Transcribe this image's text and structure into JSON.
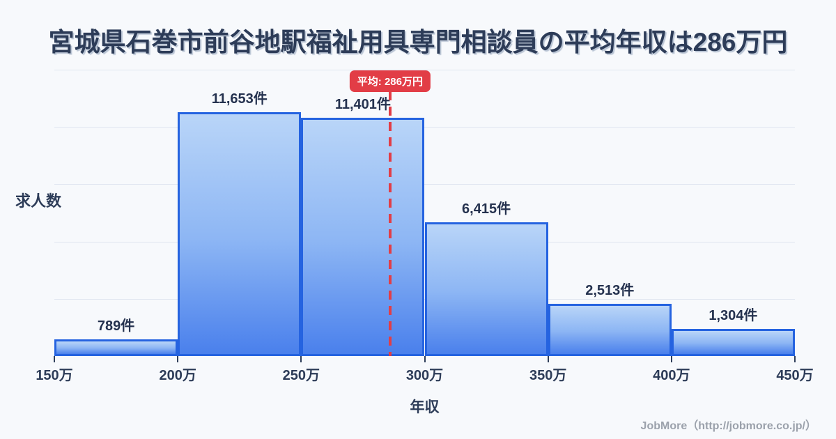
{
  "title": "宮城県石巻市前谷地駅福祉用具専門相談員の平均年収は286万円",
  "chart_data": {
    "type": "bar",
    "subtype": "histogram",
    "title": "宮城県石巻市前谷地駅福祉用具専門相談員の平均年収は286万円",
    "xlabel": "年収",
    "ylabel": "求人数",
    "bin_edges": [
      150,
      200,
      250,
      300,
      350,
      400,
      450
    ],
    "bin_edge_labels": [
      "150万",
      "200万",
      "250万",
      "300万",
      "350万",
      "400万",
      "450万"
    ],
    "values": [
      789,
      11653,
      11401,
      6415,
      2513,
      1304
    ],
    "bar_labels": [
      "789件",
      "11,653件",
      "11,401件",
      "6,415件",
      "2,513件",
      "1,304件"
    ],
    "xlim": [
      150,
      450
    ],
    "ylim": [
      0,
      13700
    ],
    "grid": true,
    "grid_divisions": 5,
    "average": {
      "value": 286,
      "label": "平均: 286万円"
    }
  },
  "axis": {
    "y_title": "求人数",
    "x_title": "年収"
  },
  "footer": {
    "credit": "JobMore（http://jobmore.co.jp/）"
  },
  "colors": {
    "background": "#f7f9fc",
    "title_color": "#2d3c58",
    "label_color": "#25324f",
    "grid_color": "#dfe5f0",
    "bar_border": "#2563e0",
    "bar_fill_top": "#b9d5f8",
    "bar_fill_mid": "#8db6f4",
    "bar_fill_bottom": "#4a80ec",
    "average_red": "#e23d46",
    "footer_color": "#9ba1ab"
  }
}
